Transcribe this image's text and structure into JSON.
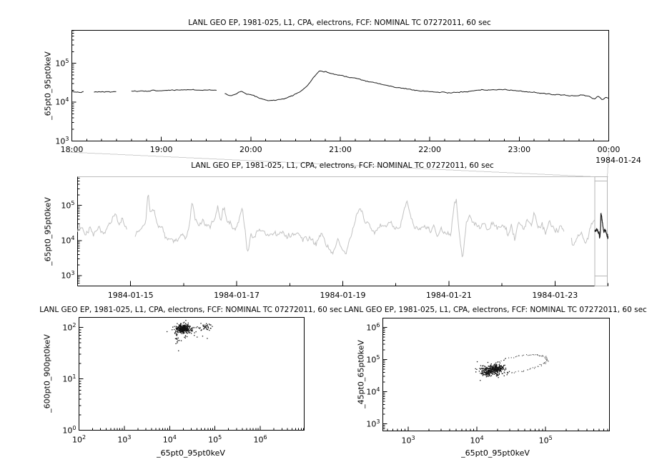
{
  "colors": {
    "axis": "#000000",
    "series": "#1c1c1c",
    "overview_series": "#c2c2c2",
    "overview_frame": "#bdbdbd",
    "context_box": "#b5b5b5",
    "connector": "#cfcfcf",
    "scatter": "#111111",
    "loop_dots": "#3c3c3c",
    "background": "#ffffff"
  },
  "chart_data": [
    {
      "id": "top_panel",
      "type": "line",
      "title": "LANL GEO EP, 1981-025, L1, CPA, electrons, FCF: NOMINAL TC 07272011, 60 sec",
      "ylabel": "_65pt0_95pt0keV",
      "x_tick_labels": [
        "18:00",
        "19:00",
        "20:00",
        "21:00",
        "22:00",
        "23:00",
        "00:00"
      ],
      "x_tick_hours": [
        18,
        19,
        20,
        21,
        22,
        23,
        24
      ],
      "x_range_hours": [
        18,
        24
      ],
      "x_minor_step_hours": 0.1666667,
      "end_date_label": "1984-01-24",
      "y_tick_exponents": [
        3,
        4,
        5
      ],
      "y_log_range": [
        3,
        5.85
      ],
      "grid": false,
      "legend": "none",
      "noise": {
        "sigma": 0.006,
        "ar": 0.5,
        "seed": 7,
        "n": 460
      },
      "series": [
        {
          "name": "_65pt0_95pt0keV",
          "keypoints": [
            [
              18.0,
              18500
            ],
            [
              18.08,
              18000
            ],
            [
              18.14,
              18600
            ],
            [
              18.16,
              null
            ],
            [
              18.24,
              18200
            ],
            [
              18.32,
              18500
            ],
            [
              18.42,
              18300
            ],
            [
              18.5,
              18600
            ],
            [
              18.54,
              null
            ],
            [
              18.66,
              18800
            ],
            [
              18.8,
              19500
            ],
            [
              19.0,
              20000
            ],
            [
              19.15,
              20500
            ],
            [
              19.3,
              21000
            ],
            [
              19.45,
              20500
            ],
            [
              19.55,
              20800
            ],
            [
              19.63,
              20000
            ],
            [
              19.66,
              null
            ],
            [
              19.7,
              17500
            ],
            [
              19.78,
              14800
            ],
            [
              19.84,
              16500
            ],
            [
              19.9,
              19000
            ],
            [
              19.96,
              15500
            ],
            [
              20.02,
              15800
            ],
            [
              20.1,
              12500
            ],
            [
              20.2,
              11200
            ],
            [
              20.3,
              11500
            ],
            [
              20.4,
              12800
            ],
            [
              20.5,
              16500
            ],
            [
              20.58,
              21000
            ],
            [
              20.64,
              28000
            ],
            [
              20.7,
              43000
            ],
            [
              20.76,
              63000
            ],
            [
              20.84,
              59000
            ],
            [
              20.94,
              53000
            ],
            [
              21.05,
              47000
            ],
            [
              21.2,
              40000
            ],
            [
              21.35,
              33000
            ],
            [
              21.5,
              27500
            ],
            [
              21.65,
              23500
            ],
            [
              21.8,
              21000
            ],
            [
              21.95,
              19000
            ],
            [
              22.1,
              18000
            ],
            [
              22.25,
              17600
            ],
            [
              22.4,
              18500
            ],
            [
              22.55,
              20000
            ],
            [
              22.7,
              21000
            ],
            [
              22.85,
              20800
            ],
            [
              23.0,
              19500
            ],
            [
              23.15,
              18000
            ],
            [
              23.3,
              16500
            ],
            [
              23.45,
              15300
            ],
            [
              23.6,
              14500
            ],
            [
              23.7,
              15500
            ],
            [
              23.78,
              14000
            ],
            [
              23.84,
              12000
            ],
            [
              23.88,
              14500
            ],
            [
              23.93,
              11500
            ],
            [
              23.97,
              13500
            ],
            [
              24.0,
              13000
            ]
          ]
        }
      ]
    },
    {
      "id": "overview_panel",
      "type": "line",
      "title": "LANL GEO EP, 1981-025, L1, CPA, electrons, FCF: NOMINAL TC 07272011, 60 sec",
      "ylabel": "_65pt0_95pt0keV",
      "x_tick_labels": [
        "1984-01-15",
        "1984-01-17",
        "1984-01-19",
        "1984-01-21",
        "1984-01-23"
      ],
      "x_tick_days": [
        1,
        3,
        5,
        7,
        9
      ],
      "x_range_days": [
        0,
        10
      ],
      "y_tick_exponents": [
        3,
        4,
        5
      ],
      "y_log_range": [
        2.7,
        5.82
      ],
      "grid": false,
      "legend": "none",
      "context_box": {
        "day_start": 9.75,
        "day_end": 10.0
      },
      "noise": {
        "sigma": 0.045,
        "ar": 0.45,
        "seed": 13,
        "n": 620
      },
      "series": [
        {
          "name": "_65pt0_95pt0keV",
          "role": "context",
          "keypoints": [
            [
              0.0,
              19000
            ],
            [
              0.08,
              22000
            ],
            [
              0.15,
              16500
            ],
            [
              0.25,
              20000
            ],
            [
              0.33,
              17000
            ],
            [
              0.4,
              21000
            ],
            [
              0.5,
              16000
            ],
            [
              0.58,
              26000
            ],
            [
              0.65,
              40000
            ],
            [
              0.72,
              52000
            ],
            [
              0.78,
              26000
            ],
            [
              0.85,
              38000
            ],
            [
              0.93,
              17000
            ],
            [
              0.95,
              null
            ],
            [
              1.08,
              15000
            ],
            [
              1.18,
              22000
            ],
            [
              1.28,
              28000
            ],
            [
              1.33,
              230000
            ],
            [
              1.37,
              60000
            ],
            [
              1.43,
              75000
            ],
            [
              1.5,
              30000
            ],
            [
              1.6,
              22000
            ],
            [
              1.68,
              12500
            ],
            [
              1.78,
              10500
            ],
            [
              1.88,
              8500
            ],
            [
              1.98,
              15000
            ],
            [
              2.05,
              11500
            ],
            [
              2.12,
              30000
            ],
            [
              2.16,
              130000
            ],
            [
              2.22,
              38000
            ],
            [
              2.3,
              26000
            ],
            [
              2.4,
              31000
            ],
            [
              2.5,
              25000
            ],
            [
              2.57,
              42000
            ],
            [
              2.64,
              100000
            ],
            [
              2.7,
              33000
            ],
            [
              2.76,
              92000
            ],
            [
              2.83,
              33000
            ],
            [
              2.92,
              25000
            ],
            [
              3.0,
              21000
            ],
            [
              3.06,
              48000
            ],
            [
              3.11,
              100000
            ],
            [
              3.16,
              19000
            ],
            [
              3.2,
              4500
            ],
            [
              3.27,
              13000
            ],
            [
              3.37,
              18000
            ],
            [
              3.5,
              15500
            ],
            [
              3.62,
              13500
            ],
            [
              3.75,
              16500
            ],
            [
              3.88,
              14500
            ],
            [
              4.0,
              12500
            ],
            [
              4.12,
              15500
            ],
            [
              4.25,
              10500
            ],
            [
              4.38,
              13000
            ],
            [
              4.5,
              8500
            ],
            [
              4.6,
              14500
            ],
            [
              4.7,
              6800
            ],
            [
              4.82,
              4300
            ],
            [
              4.9,
              12500
            ],
            [
              5.0,
              5800
            ],
            [
              5.06,
              3900
            ],
            [
              5.16,
              14000
            ],
            [
              5.26,
              52000
            ],
            [
              5.33,
              88000
            ],
            [
              5.42,
              34000
            ],
            [
              5.52,
              24000
            ],
            [
              5.62,
              21000
            ],
            [
              5.72,
              27000
            ],
            [
              5.8,
              21500
            ],
            [
              5.88,
              31000
            ],
            [
              5.97,
              24000
            ],
            [
              6.08,
              21000
            ],
            [
              6.16,
              85000
            ],
            [
              6.21,
              160000
            ],
            [
              6.27,
              48000
            ],
            [
              6.35,
              24000
            ],
            [
              6.45,
              21500
            ],
            [
              6.55,
              23500
            ],
            [
              6.65,
              17500
            ],
            [
              6.72,
              27000
            ],
            [
              6.78,
              9800
            ],
            [
              6.85,
              21000
            ],
            [
              6.95,
              17500
            ],
            [
              7.04,
              14500
            ],
            [
              7.1,
              88000
            ],
            [
              7.14,
              130000
            ],
            [
              7.18,
              28000
            ],
            [
              7.22,
              7800
            ],
            [
              7.26,
              3400
            ],
            [
              7.33,
              29000
            ],
            [
              7.38,
              52000
            ],
            [
              7.48,
              29000
            ],
            [
              7.58,
              19500
            ],
            [
              7.65,
              25000
            ],
            [
              7.75,
              19500
            ],
            [
              7.83,
              37000
            ],
            [
              7.9,
              21500
            ],
            [
              7.98,
              27000
            ],
            [
              8.06,
              23000
            ],
            [
              8.12,
              13500
            ],
            [
              8.18,
              31000
            ],
            [
              8.24,
              10500
            ],
            [
              8.32,
              27000
            ],
            [
              8.4,
              21500
            ],
            [
              8.48,
              43000
            ],
            [
              8.55,
              27000
            ],
            [
              8.62,
              62000
            ],
            [
              8.68,
              23000
            ],
            [
              8.76,
              31000
            ],
            [
              8.82,
              17500
            ],
            [
              8.9,
              41000
            ],
            [
              8.97,
              25000
            ],
            [
              9.05,
              19500
            ],
            [
              9.12,
              27000
            ],
            [
              9.18,
              15500
            ],
            [
              9.21,
              null
            ],
            [
              9.3,
              12000
            ],
            [
              9.36,
              8000
            ],
            [
              9.44,
              13500
            ],
            [
              9.5,
              16000
            ],
            [
              9.56,
              9800
            ],
            [
              9.63,
              13500
            ],
            [
              9.7,
              30000
            ],
            [
              9.75,
              32000
            ]
          ]
        },
        {
          "name": "_65pt0_95pt0keV (zoom range)",
          "role": "highlight",
          "keypoints": [
            [
              9.75,
              18500
            ],
            [
              9.77,
              19000
            ],
            [
              9.79,
              20500
            ],
            [
              9.805,
              19500
            ],
            [
              9.825,
              15000
            ],
            [
              9.83,
              18500
            ],
            [
              9.84,
              12000
            ],
            [
              9.85,
              13500
            ],
            [
              9.857,
              20000
            ],
            [
              9.862,
              35000
            ],
            [
              9.865,
              63000
            ],
            [
              9.87,
              55000
            ],
            [
              9.878,
              48000
            ],
            [
              9.89,
              36000
            ],
            [
              9.9,
              27000
            ],
            [
              9.91,
              22000
            ],
            [
              9.917,
              18500
            ],
            [
              9.925,
              17500
            ],
            [
              9.935,
              20500
            ],
            [
              9.945,
              20000
            ],
            [
              9.958,
              18500
            ],
            [
              9.97,
              15500
            ],
            [
              9.978,
              14500
            ],
            [
              9.985,
              12000
            ],
            [
              9.99,
              14500
            ],
            [
              9.995,
              11500
            ],
            [
              10.0,
              13000
            ]
          ]
        }
      ],
      "highlight_noise": {
        "sigma": 0.015,
        "ar": 0.3,
        "seed": 17,
        "n": 130
      }
    },
    {
      "id": "scatter_left",
      "type": "scatter",
      "title": "LANL GEO EP, 1981-025, L1, CPA, electrons, FCF: NOMINAL TC 07272011, 60 sec",
      "xlabel": "_65pt0_95pt0keV",
      "ylabel": "_600pt0_900pt0keV",
      "x_tick_exponents": [
        2,
        3,
        4,
        5,
        6
      ],
      "x_log_range": [
        2,
        6.97
      ],
      "y_tick_exponents": [
        0,
        1,
        2
      ],
      "y_log_range": [
        0,
        2.195
      ],
      "grid": false,
      "legend": "none",
      "clusters": [
        {
          "n": 300,
          "cx": 4.3,
          "cy": 1.975,
          "sx": 0.07,
          "sy": 0.04,
          "seed": 31
        },
        {
          "n": 70,
          "cx": 4.35,
          "cy": 1.96,
          "sx": 0.13,
          "sy": 0.075,
          "seed": 32
        },
        {
          "n": 45,
          "cx": 4.75,
          "cy": 2.0,
          "sx": 0.14,
          "sy": 0.03,
          "seed": 33
        },
        {
          "n": 22,
          "cx": 4.16,
          "cy": 1.86,
          "sx": 0.02,
          "sy": 0.11,
          "seed": 34
        }
      ]
    },
    {
      "id": "scatter_right",
      "type": "scatter",
      "title": "LANL GEO EP, 1981-025, L1, CPA, electrons, FCF: NOMINAL TC 07272011, 60 sec",
      "xlabel": "_65pt0_95pt0keV",
      "ylabel": "_45pt0_65pt0keV",
      "x_tick_exponents": [
        3,
        4,
        5
      ],
      "x_log_range": [
        2.63,
        5.93
      ],
      "y_tick_exponents": [
        3,
        4,
        5,
        6
      ],
      "y_log_range": [
        2.78,
        6.29
      ],
      "grid": false,
      "legend": "none",
      "clusters": [
        {
          "n": 260,
          "cx": 4.21,
          "cy": 4.67,
          "sx": 0.08,
          "sy": 0.095,
          "seed": 41
        },
        {
          "n": 90,
          "cx": 4.3,
          "cy": 4.74,
          "sx": 0.05,
          "sy": 0.05,
          "seed": 42
        },
        {
          "n": 25,
          "cx": 4.13,
          "cy": 4.55,
          "sx": 0.03,
          "sy": 0.05,
          "seed": 43
        }
      ],
      "loop": {
        "cx": 4.61,
        "cy": 4.865,
        "ax": 0.41,
        "ay_cos": 0.135,
        "ay_sin": 0.245,
        "n": 95,
        "jitter": 0.013,
        "seed": 44
      }
    }
  ]
}
